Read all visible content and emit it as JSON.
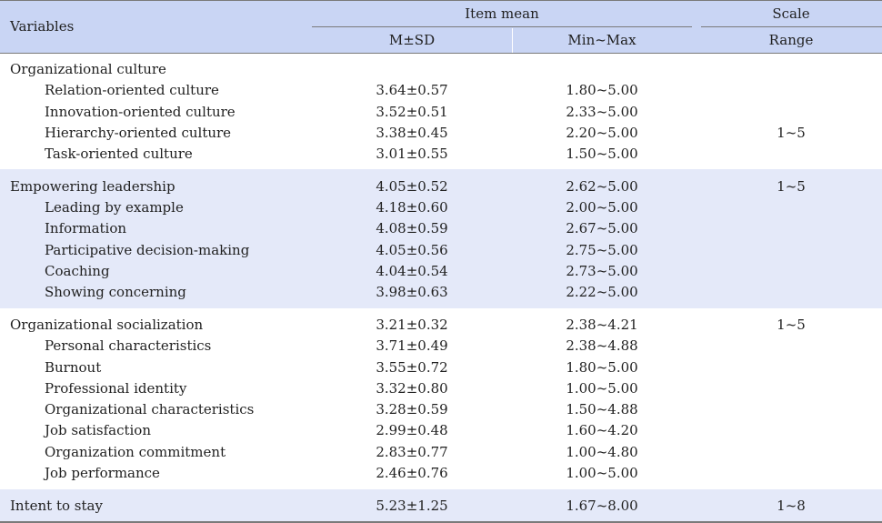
{
  "header": {
    "variables": "Variables",
    "item_mean": "Item mean",
    "scale": "Scale",
    "msd": "M±SD",
    "minmax": "Min~Max",
    "range": "Range"
  },
  "groups": [
    {
      "label": "Organizational culture",
      "shade": false,
      "range": "1~5",
      "main": null,
      "items": [
        {
          "label": "Relation-oriented culture",
          "msd": "3.64±0.57",
          "minmax": "1.80~5.00"
        },
        {
          "label": "Innovation-oriented culture",
          "msd": "3.52±0.51",
          "minmax": "2.33~5.00"
        },
        {
          "label": "Hierarchy-oriented culture",
          "msd": "3.38±0.45",
          "minmax": "2.20~5.00"
        },
        {
          "label": "Task-oriented culture",
          "msd": "3.01±0.55",
          "minmax": "1.50~5.00"
        }
      ]
    },
    {
      "label": "Empowering leadership",
      "shade": true,
      "range": "1~5",
      "main": {
        "msd": "4.05±0.52",
        "minmax": "2.62~5.00"
      },
      "items": [
        {
          "label": "Leading by example",
          "msd": "4.18±0.60",
          "minmax": "2.00~5.00"
        },
        {
          "label": "Information",
          "msd": "4.08±0.59",
          "minmax": "2.67~5.00"
        },
        {
          "label": "Participative decision-making",
          "msd": "4.05±0.56",
          "minmax": "2.75~5.00"
        },
        {
          "label": "Coaching",
          "msd": "4.04±0.54",
          "minmax": "2.73~5.00"
        },
        {
          "label": "Showing concerning",
          "msd": "3.98±0.63",
          "minmax": "2.22~5.00"
        }
      ]
    },
    {
      "label": "Organizational socialization",
      "shade": false,
      "range": "1~5",
      "main": {
        "msd": "3.21±0.32",
        "minmax": "2.38~4.21"
      },
      "items": [
        {
          "label": "Personal characteristics",
          "msd": "3.71±0.49",
          "minmax": "2.38~4.88"
        },
        {
          "label": "Burnout",
          "msd": "3.55±0.72",
          "minmax": "1.80~5.00"
        },
        {
          "label": "Professional identity",
          "msd": "3.32±0.80",
          "minmax": "1.00~5.00"
        },
        {
          "label": "Organizational characteristics",
          "msd": "3.28±0.59",
          "minmax": "1.50~4.88"
        },
        {
          "label": "Job satisfaction",
          "msd": "2.99±0.48",
          "minmax": "1.60~4.20"
        },
        {
          "label": "Organization commitment",
          "msd": "2.83±0.77",
          "minmax": "1.00~4.80"
        },
        {
          "label": "Job performance",
          "msd": "2.46±0.76",
          "minmax": "1.00~5.00"
        }
      ]
    },
    {
      "label": "Intent to stay",
      "shade": true,
      "range": "1~8",
      "main": {
        "msd": "5.23±1.25",
        "minmax": "1.67~8.00"
      },
      "items": []
    }
  ]
}
